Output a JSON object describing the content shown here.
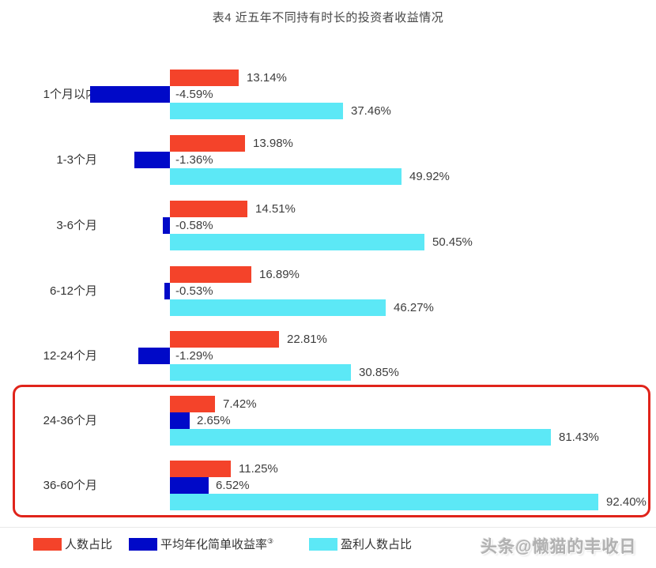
{
  "title": "表4 近五年不同持有时长的投资者收益情况",
  "watermark": "头条@懒猫的丰收日",
  "colors": {
    "red": "#f4432a",
    "blue": "#0009c8",
    "cyan": "#5ce8f6",
    "highlight_border": "#e0241b",
    "text": "#3d3d3d"
  },
  "legend": {
    "items": [
      {
        "label": "人数占比",
        "sup": "",
        "color": "#f4432a"
      },
      {
        "label": "平均年化简单收益率",
        "sup": "③",
        "color": "#0009c8"
      },
      {
        "label": "盈利人数占比",
        "sup": "",
        "color": "#5ce8f6"
      }
    ]
  },
  "chart_data": {
    "type": "bar",
    "orientation": "horizontal",
    "title": "表4 近五年不同持有时长的投资者收益情况",
    "categories": [
      "1个月以内",
      "1-3个月",
      "3-6个月",
      "6-12个月",
      "12-24个月",
      "24-36个月",
      "36-60个月"
    ],
    "series": [
      {
        "name": "人数占比",
        "color": "#f4432a",
        "values": [
          13.14,
          13.98,
          14.51,
          16.89,
          22.81,
          7.42,
          11.25
        ]
      },
      {
        "name": "平均年化简单收益率③",
        "color": "#0009c8",
        "values": [
          -4.59,
          -1.36,
          -0.58,
          -0.53,
          -1.29,
          2.65,
          6.52
        ]
      },
      {
        "name": "盈利人数占比",
        "color": "#5ce8f6",
        "values": [
          37.46,
          49.92,
          50.45,
          46.27,
          30.85,
          81.43,
          92.4
        ]
      }
    ],
    "highlight": {
      "rows": [
        "24-36个月",
        "36-60个月"
      ],
      "border_color": "#e0241b"
    },
    "legend_position": "bottom",
    "grid": false,
    "axis": {
      "zero_x_hint": 215,
      "unit": "%"
    },
    "rows": [
      {
        "category": "1个月以内",
        "highlighted": false,
        "red": {
          "value": 13.14,
          "label": "13.14%",
          "px": 87
        },
        "blue": {
          "value": -4.59,
          "label": "-4.59%",
          "px": 101,
          "dir": "left"
        },
        "cyan": {
          "value": 37.46,
          "label": "37.46%",
          "px": 219
        }
      },
      {
        "category": "1-3个月",
        "highlighted": false,
        "red": {
          "value": 13.98,
          "label": "13.98%",
          "px": 95
        },
        "blue": {
          "value": -1.36,
          "label": "-1.36%",
          "px": 45,
          "dir": "left"
        },
        "cyan": {
          "value": 49.92,
          "label": "49.92%",
          "px": 293
        }
      },
      {
        "category": "3-6个月",
        "highlighted": false,
        "red": {
          "value": 14.51,
          "label": "14.51%",
          "px": 98
        },
        "blue": {
          "value": -0.58,
          "label": "-0.58%",
          "px": 9,
          "dir": "left"
        },
        "cyan": {
          "value": 50.45,
          "label": "50.45%",
          "px": 322
        }
      },
      {
        "category": "6-12个月",
        "highlighted": false,
        "red": {
          "value": 16.89,
          "label": "16.89%",
          "px": 103
        },
        "blue": {
          "value": -0.53,
          "label": "-0.53%",
          "px": 7,
          "dir": "left"
        },
        "cyan": {
          "value": 46.27,
          "label": "46.27%",
          "px": 273
        }
      },
      {
        "category": "12-24个月",
        "highlighted": false,
        "red": {
          "value": 22.81,
          "label": "22.81%",
          "px": 138
        },
        "blue": {
          "value": -1.29,
          "label": "-1.29%",
          "px": 40,
          "dir": "left"
        },
        "cyan": {
          "value": 30.85,
          "label": "30.85%",
          "px": 229
        }
      },
      {
        "category": "24-36个月",
        "highlighted": true,
        "red": {
          "value": 7.42,
          "label": "7.42%",
          "px": 57
        },
        "blue": {
          "value": 2.65,
          "label": "2.65%",
          "px": 25,
          "dir": "right"
        },
        "cyan": {
          "value": 81.43,
          "label": "81.43%",
          "px": 482
        }
      },
      {
        "category": "36-60个月",
        "highlighted": true,
        "red": {
          "value": 11.25,
          "label": "11.25%",
          "px": 77
        },
        "blue": {
          "value": 6.52,
          "label": "6.52%",
          "px": 49,
          "dir": "right"
        },
        "cyan": {
          "value": 92.4,
          "label": "92.40%",
          "px": 542
        }
      }
    ]
  }
}
